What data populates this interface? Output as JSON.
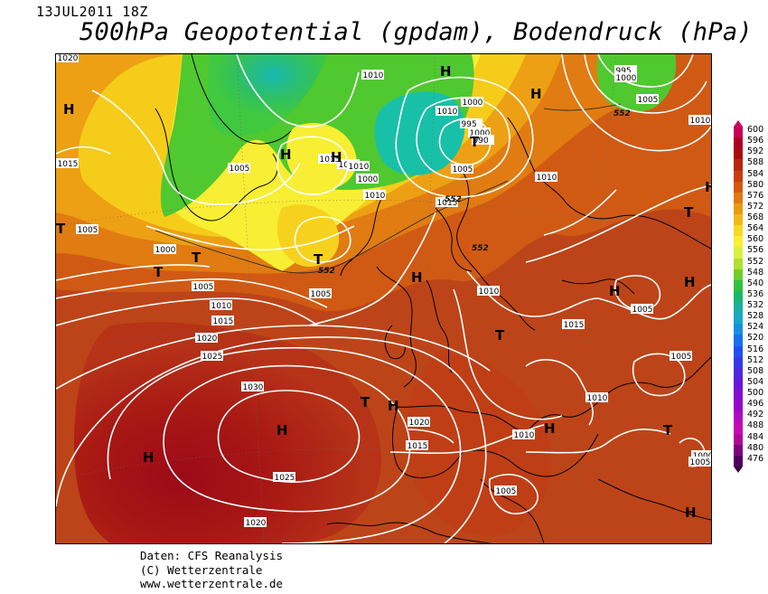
{
  "header": {
    "date": "13JUL2011 18Z",
    "title": "500hPa Geopotential (gpdam), Bodendruck (hPa)"
  },
  "map": {
    "pressure_centers": [
      {
        "letter": "H",
        "kind": "high"
      },
      {
        "letter": "H",
        "kind": "high"
      },
      {
        "letter": "H",
        "kind": "high"
      },
      {
        "letter": "H",
        "kind": "high"
      },
      {
        "letter": "H",
        "kind": "high"
      },
      {
        "letter": "H",
        "kind": "high"
      },
      {
        "letter": "H",
        "kind": "high"
      },
      {
        "letter": "H",
        "kind": "high"
      },
      {
        "letter": "H",
        "kind": "high"
      },
      {
        "letter": "H",
        "kind": "high"
      },
      {
        "letter": "H",
        "kind": "high"
      },
      {
        "letter": "H",
        "kind": "high"
      },
      {
        "letter": "H",
        "kind": "high"
      },
      {
        "letter": "H",
        "kind": "high"
      },
      {
        "letter": "T",
        "kind": "low"
      },
      {
        "letter": "T",
        "kind": "low"
      },
      {
        "letter": "T",
        "kind": "low"
      },
      {
        "letter": "T",
        "kind": "low"
      },
      {
        "letter": "T",
        "kind": "low"
      },
      {
        "letter": "T",
        "kind": "low"
      },
      {
        "letter": "T",
        "kind": "low"
      },
      {
        "letter": "T",
        "kind": "low"
      },
      {
        "letter": "T",
        "kind": "low"
      }
    ],
    "isobar_labels": [
      "1020",
      "1000",
      "1010",
      "1010",
      "1005",
      "995",
      "1000",
      "1005",
      "1000",
      "1010",
      "995",
      "1000",
      "990",
      "1005",
      "1015",
      "1010",
      "1005",
      "1010",
      "1010",
      "1015",
      "1015",
      "1005",
      "1000",
      "1005",
      "1010",
      "1015",
      "1020",
      "1025",
      "1030",
      "1025",
      "1020",
      "1020",
      "1015",
      "1010",
      "1015",
      "1010",
      "1010",
      "1005",
      "1005",
      "1010",
      "1005",
      "1000",
      "1005"
    ],
    "height_contour_labels": [
      "552",
      "552",
      "552",
      "552"
    ]
  },
  "legend": {
    "values": [
      "600",
      "596",
      "592",
      "588",
      "584",
      "580",
      "576",
      "572",
      "568",
      "564",
      "560",
      "556",
      "552",
      "548",
      "540",
      "536",
      "532",
      "528",
      "524",
      "520",
      "516",
      "512",
      "508",
      "504",
      "500",
      "496",
      "492",
      "488",
      "484",
      "480",
      "476"
    ],
    "colors": [
      "#c8005a",
      "#b00020",
      "#a80c10",
      "#b82510",
      "#c83d0e",
      "#d45a10",
      "#e07a12",
      "#ea9a14",
      "#f2b818",
      "#f8d820",
      "#f8f030",
      "#d8f040",
      "#b0e030",
      "#70cc28",
      "#30c040",
      "#18b868",
      "#18b0a0",
      "#18a8c8",
      "#1890e0",
      "#1870f0",
      "#2050f0",
      "#3838e8",
      "#5028e0",
      "#6818d8",
      "#8010d0",
      "#9808c8",
      "#b008c0",
      "#c808b0",
      "#b00898",
      "#800080",
      "#500060"
    ]
  },
  "credits": {
    "line1": "Daten: CFS Reanalysis",
    "line2": "(C) Wetterzentrale",
    "line3": "www.wetterzentrale.de"
  }
}
